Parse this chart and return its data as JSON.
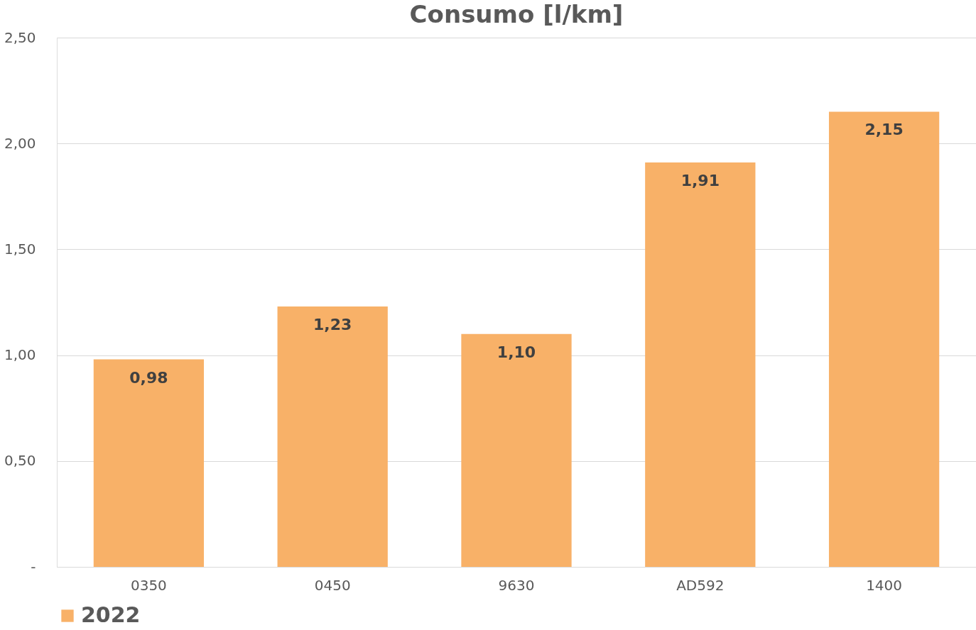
{
  "chart_data": {
    "type": "bar",
    "title": "Consumo [l/km]",
    "categories": [
      "0350",
      "0450",
      "9630",
      "AD592",
      "1400"
    ],
    "series": [
      {
        "name": "2022",
        "color": "#f8b168",
        "values": [
          0.98,
          1.23,
          1.1,
          1.91,
          2.15
        ],
        "value_labels": [
          "0,98",
          "1,23",
          "1,10",
          "1,91",
          "2,15"
        ]
      }
    ],
    "ylim": [
      0,
      2.5
    ],
    "yticks": [
      {
        "value": 0,
        "label": "-"
      },
      {
        "value": 0.5,
        "label": "0,50"
      },
      {
        "value": 1.0,
        "label": "1,00"
      },
      {
        "value": 1.5,
        "label": "1,50"
      },
      {
        "value": 2.0,
        "label": "2,00"
      },
      {
        "value": 2.5,
        "label": "2,50"
      }
    ],
    "grid": "y",
    "legend": "bottom"
  }
}
